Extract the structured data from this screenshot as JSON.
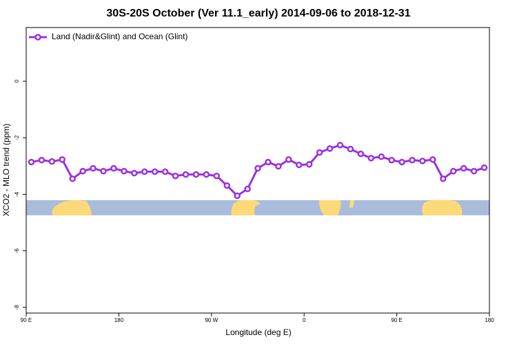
{
  "chart_data": {
    "type": "line",
    "title": "30S-20S October (Ver 11.1_early)   2014-09-06 to 2018-12-31",
    "x_label": "Longitude (deg E)",
    "y_label": "XCO2 - MLO trend (ppm)",
    "xlim": [
      90,
      540
    ],
    "xticks": [
      {
        "value": 90,
        "label": "90 E"
      },
      {
        "value": 180,
        "label": "180"
      },
      {
        "value": 270,
        "label": "90 W"
      },
      {
        "value": 360,
        "label": "0"
      },
      {
        "value": 450,
        "label": "90 E"
      },
      {
        "value": 540,
        "label": "180"
      }
    ],
    "ylim": [
      -8.2,
      1.9
    ],
    "yticks": [
      0,
      -2,
      -4,
      -6,
      -8
    ],
    "legend_position": "top-left",
    "series": [
      {
        "name": "Land (Nadir&Glint) and Ocean (Glint)",
        "color": "#9b30e0",
        "x": [
          95,
          105,
          115,
          125,
          135,
          145,
          155,
          165,
          175,
          185,
          195,
          205,
          215,
          225,
          235,
          245,
          255,
          265,
          275,
          285,
          295,
          305,
          315,
          325,
          335,
          345,
          355,
          365,
          375,
          385,
          395,
          405,
          415,
          425,
          435,
          445,
          455,
          465,
          475,
          485,
          495,
          505,
          515,
          525,
          535
        ],
        "values": [
          -2.86,
          -2.79,
          -2.84,
          -2.77,
          -3.45,
          -3.18,
          -3.08,
          -3.18,
          -3.08,
          -3.18,
          -3.25,
          -3.2,
          -3.2,
          -3.2,
          -3.35,
          -3.3,
          -3.3,
          -3.3,
          -3.35,
          -3.69,
          -4.05,
          -3.81,
          -3.08,
          -2.86,
          -3.01,
          -2.77,
          -2.96,
          -2.94,
          -2.52,
          -2.38,
          -2.26,
          -2.4,
          -2.57,
          -2.72,
          -2.67,
          -2.79,
          -2.86,
          -2.79,
          -2.82,
          -2.77,
          -3.45,
          -3.18,
          -3.08,
          -3.18,
          -3.06
        ]
      }
    ]
  }
}
